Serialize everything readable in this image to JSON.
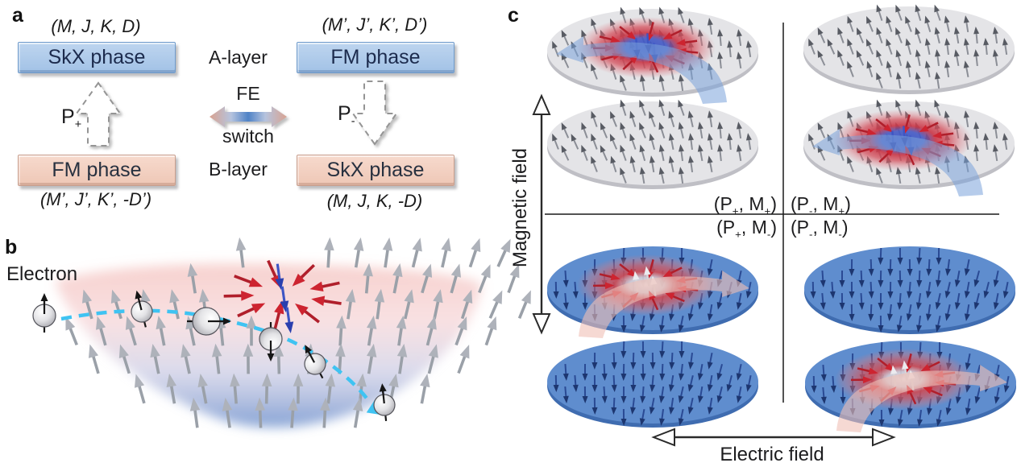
{
  "panel_a": {
    "label": "a",
    "top_left": {
      "params": "(M, J, K, D)",
      "box": "SkX phase"
    },
    "top_right": {
      "params": "(M’, J’, K’, D’)",
      "box": "FM phase"
    },
    "layer_top": "A-layer",
    "layer_bottom": "B-layer",
    "fe_line1": "FE",
    "fe_line2": "switch",
    "p_up": {
      "base": "P",
      "sub": "+"
    },
    "p_down": {
      "base": "P",
      "sub": "-"
    },
    "bottom_left": {
      "box": "FM phase",
      "params": "(M’, J’, K’, -D’)"
    },
    "bottom_right": {
      "box": "SkX phase",
      "params": "(M, J, K, -D)"
    }
  },
  "panel_b": {
    "label": "b",
    "electron": "Electron"
  },
  "panel_c": {
    "label": "c",
    "axis_y": "Magnetic field",
    "axis_x": "Electric field",
    "q_tl": {
      "a": "(P",
      "s1": "+",
      "b": ", M",
      "s2": "+",
      "c": ")"
    },
    "q_tr": {
      "a": "(P",
      "s1": "-",
      "b": ", M",
      "s2": "+",
      "c": ")"
    },
    "q_bl": {
      "a": "(P",
      "s1": "+",
      "b": ", M",
      "s2": "-",
      "c": ")"
    },
    "q_br": {
      "a": "(P",
      "s1": "-",
      "b": ", M",
      "s2": "-",
      "c": ")"
    }
  },
  "colors": {
    "box_blue": "#a9c7e9",
    "box_pink": "#f2cfc1",
    "disk_gray": "#e4e4e7",
    "disk_gray_rim": "#bfbfc5",
    "disk_blue": "#5f8dce",
    "disk_blue_rim": "#3f6cb0",
    "spin_gray_shaft": "#8b8e96",
    "spin_gray_head": "#585b63",
    "spin_blue_shaft": "#2a4a94",
    "spin_blue_head": "#1d3670",
    "skyrmion_red_shaft": "#b01f2b",
    "skyrmion_red_head": "#cd2430",
    "skyrmion_core_blue_shaft": "#3d55c4",
    "skyrmion_core_blue_head": "#2a3fae",
    "skyrmion_core_light_shaft": "#d5d5da",
    "skyrmion_core_light_head": "#ebebef",
    "trajectory_cyan": "#3fc3f2",
    "big_arrow_blue": "#7aa2db",
    "big_arrow_pink": "#f0bfb6",
    "field_arrow_shaft": "#9aa0a8",
    "field_arrow_head": "#aeb2ba"
  }
}
